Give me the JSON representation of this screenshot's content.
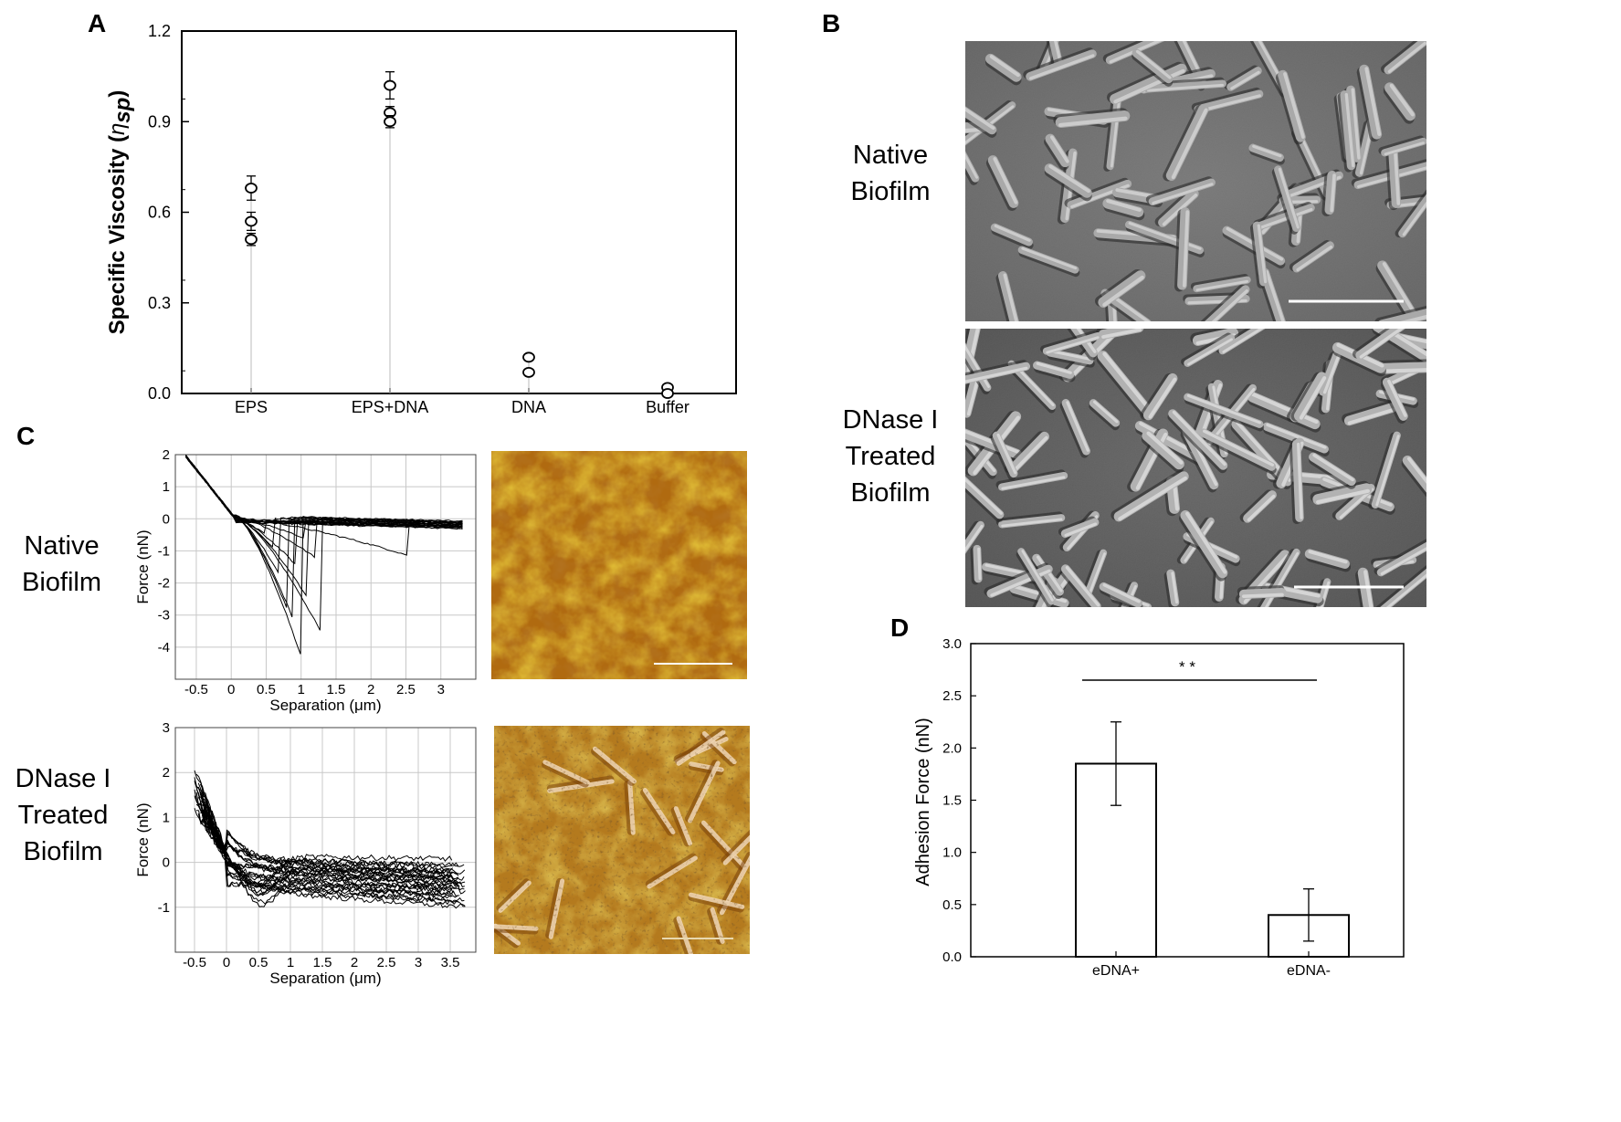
{
  "panels": {
    "a": {
      "letter": "A"
    },
    "b": {
      "letter": "B",
      "native_label": [
        "Native",
        "Biofilm"
      ],
      "treated_label": [
        "DNase I",
        "Treated",
        "Biofilm"
      ]
    },
    "c": {
      "letter": "C",
      "native_label": [
        "Native",
        "Biofilm"
      ],
      "treated_label": [
        "DNase I",
        "Treated",
        "Biofilm"
      ]
    },
    "d": {
      "letter": "D"
    }
  },
  "chart_data": [
    {
      "id": "A",
      "type": "scatter",
      "categories": [
        "EPS",
        "EPS+DNA",
        "DNA",
        "Buffer"
      ],
      "ylabel": "Specific Viscosity (ηsp)",
      "ylabel_main": "Specific Viscosity (",
      "ylabel_symbol": "η",
      "ylabel_sub": "sp",
      "ylabel_close": ")",
      "ylim": [
        0,
        1.2
      ],
      "yticks": [
        "0.0",
        "0.3",
        "0.6",
        "0.9",
        "1.2"
      ],
      "points": [
        {
          "category": "EPS",
          "values": [
            0.68,
            0.57,
            0.51
          ],
          "error": [
            0.04,
            0.03,
            0.02
          ]
        },
        {
          "category": "EPS+DNA",
          "values": [
            1.02,
            0.93,
            0.9
          ],
          "error": [
            0.045,
            0.02,
            0.02
          ]
        },
        {
          "category": "DNA",
          "values": [
            0.12,
            0.07
          ],
          "error": [
            0.01,
            0.01
          ]
        },
        {
          "category": "Buffer",
          "values": [
            0.02,
            0.0
          ],
          "error": [
            0.005,
            0.005
          ]
        }
      ]
    },
    {
      "id": "C-native",
      "type": "line",
      "xlabel": "Separation (μm)",
      "ylabel": "Force (nN)",
      "xlim": [
        -0.8,
        3.5
      ],
      "ylim": [
        -5,
        2
      ],
      "xticks": [
        "-0.5",
        "0",
        "0.5",
        "1",
        "1.5",
        "2",
        "2.5",
        "3"
      ],
      "yticks": [
        "2",
        "1",
        "0",
        "-1",
        "-2",
        "-3",
        "-4"
      ],
      "curve_count": 20,
      "adhesion_drops": [
        {
          "x": 1.0,
          "y": -4.3
        },
        {
          "x": 1.3,
          "y": -3.6
        },
        {
          "x": 0.9,
          "y": -3.2
        },
        {
          "x": 0.8,
          "y": -2.8
        },
        {
          "x": 1.1,
          "y": -2.5
        },
        {
          "x": 0.7,
          "y": -1.8
        },
        {
          "x": 1.2,
          "y": -1.2
        },
        {
          "x": 0.6,
          "y": -0.9
        },
        {
          "x": 2.55,
          "y": -1.15
        },
        {
          "x": 0.95,
          "y": -1.5
        },
        {
          "x": 1.05,
          "y": -0.6
        },
        {
          "x": 0.5,
          "y": -0.5
        }
      ]
    },
    {
      "id": "C-treated",
      "type": "line",
      "xlabel": "Separation (μm)",
      "ylabel": "Force (nN)",
      "xlim": [
        -0.8,
        3.9
      ],
      "ylim": [
        -2,
        3
      ],
      "xticks": [
        "-0.5",
        "0",
        "0.5",
        "1",
        "1.5",
        "2",
        "2.5",
        "3",
        "3.5"
      ],
      "yticks": [
        "3",
        "2",
        "1",
        "0",
        "-1"
      ],
      "curve_count": 30
    },
    {
      "id": "D",
      "type": "bar",
      "categories": [
        "eDNA+",
        "eDNA-"
      ],
      "values": [
        1.85,
        0.4
      ],
      "errors": [
        0.4,
        0.25
      ],
      "ylabel": "Adhesion Force (nN)",
      "ylim": [
        0,
        3.0
      ],
      "yticks": [
        "0.0",
        "0.5",
        "1.0",
        "1.5",
        "2.0",
        "2.5",
        "3.0"
      ],
      "significance": "* *"
    }
  ]
}
